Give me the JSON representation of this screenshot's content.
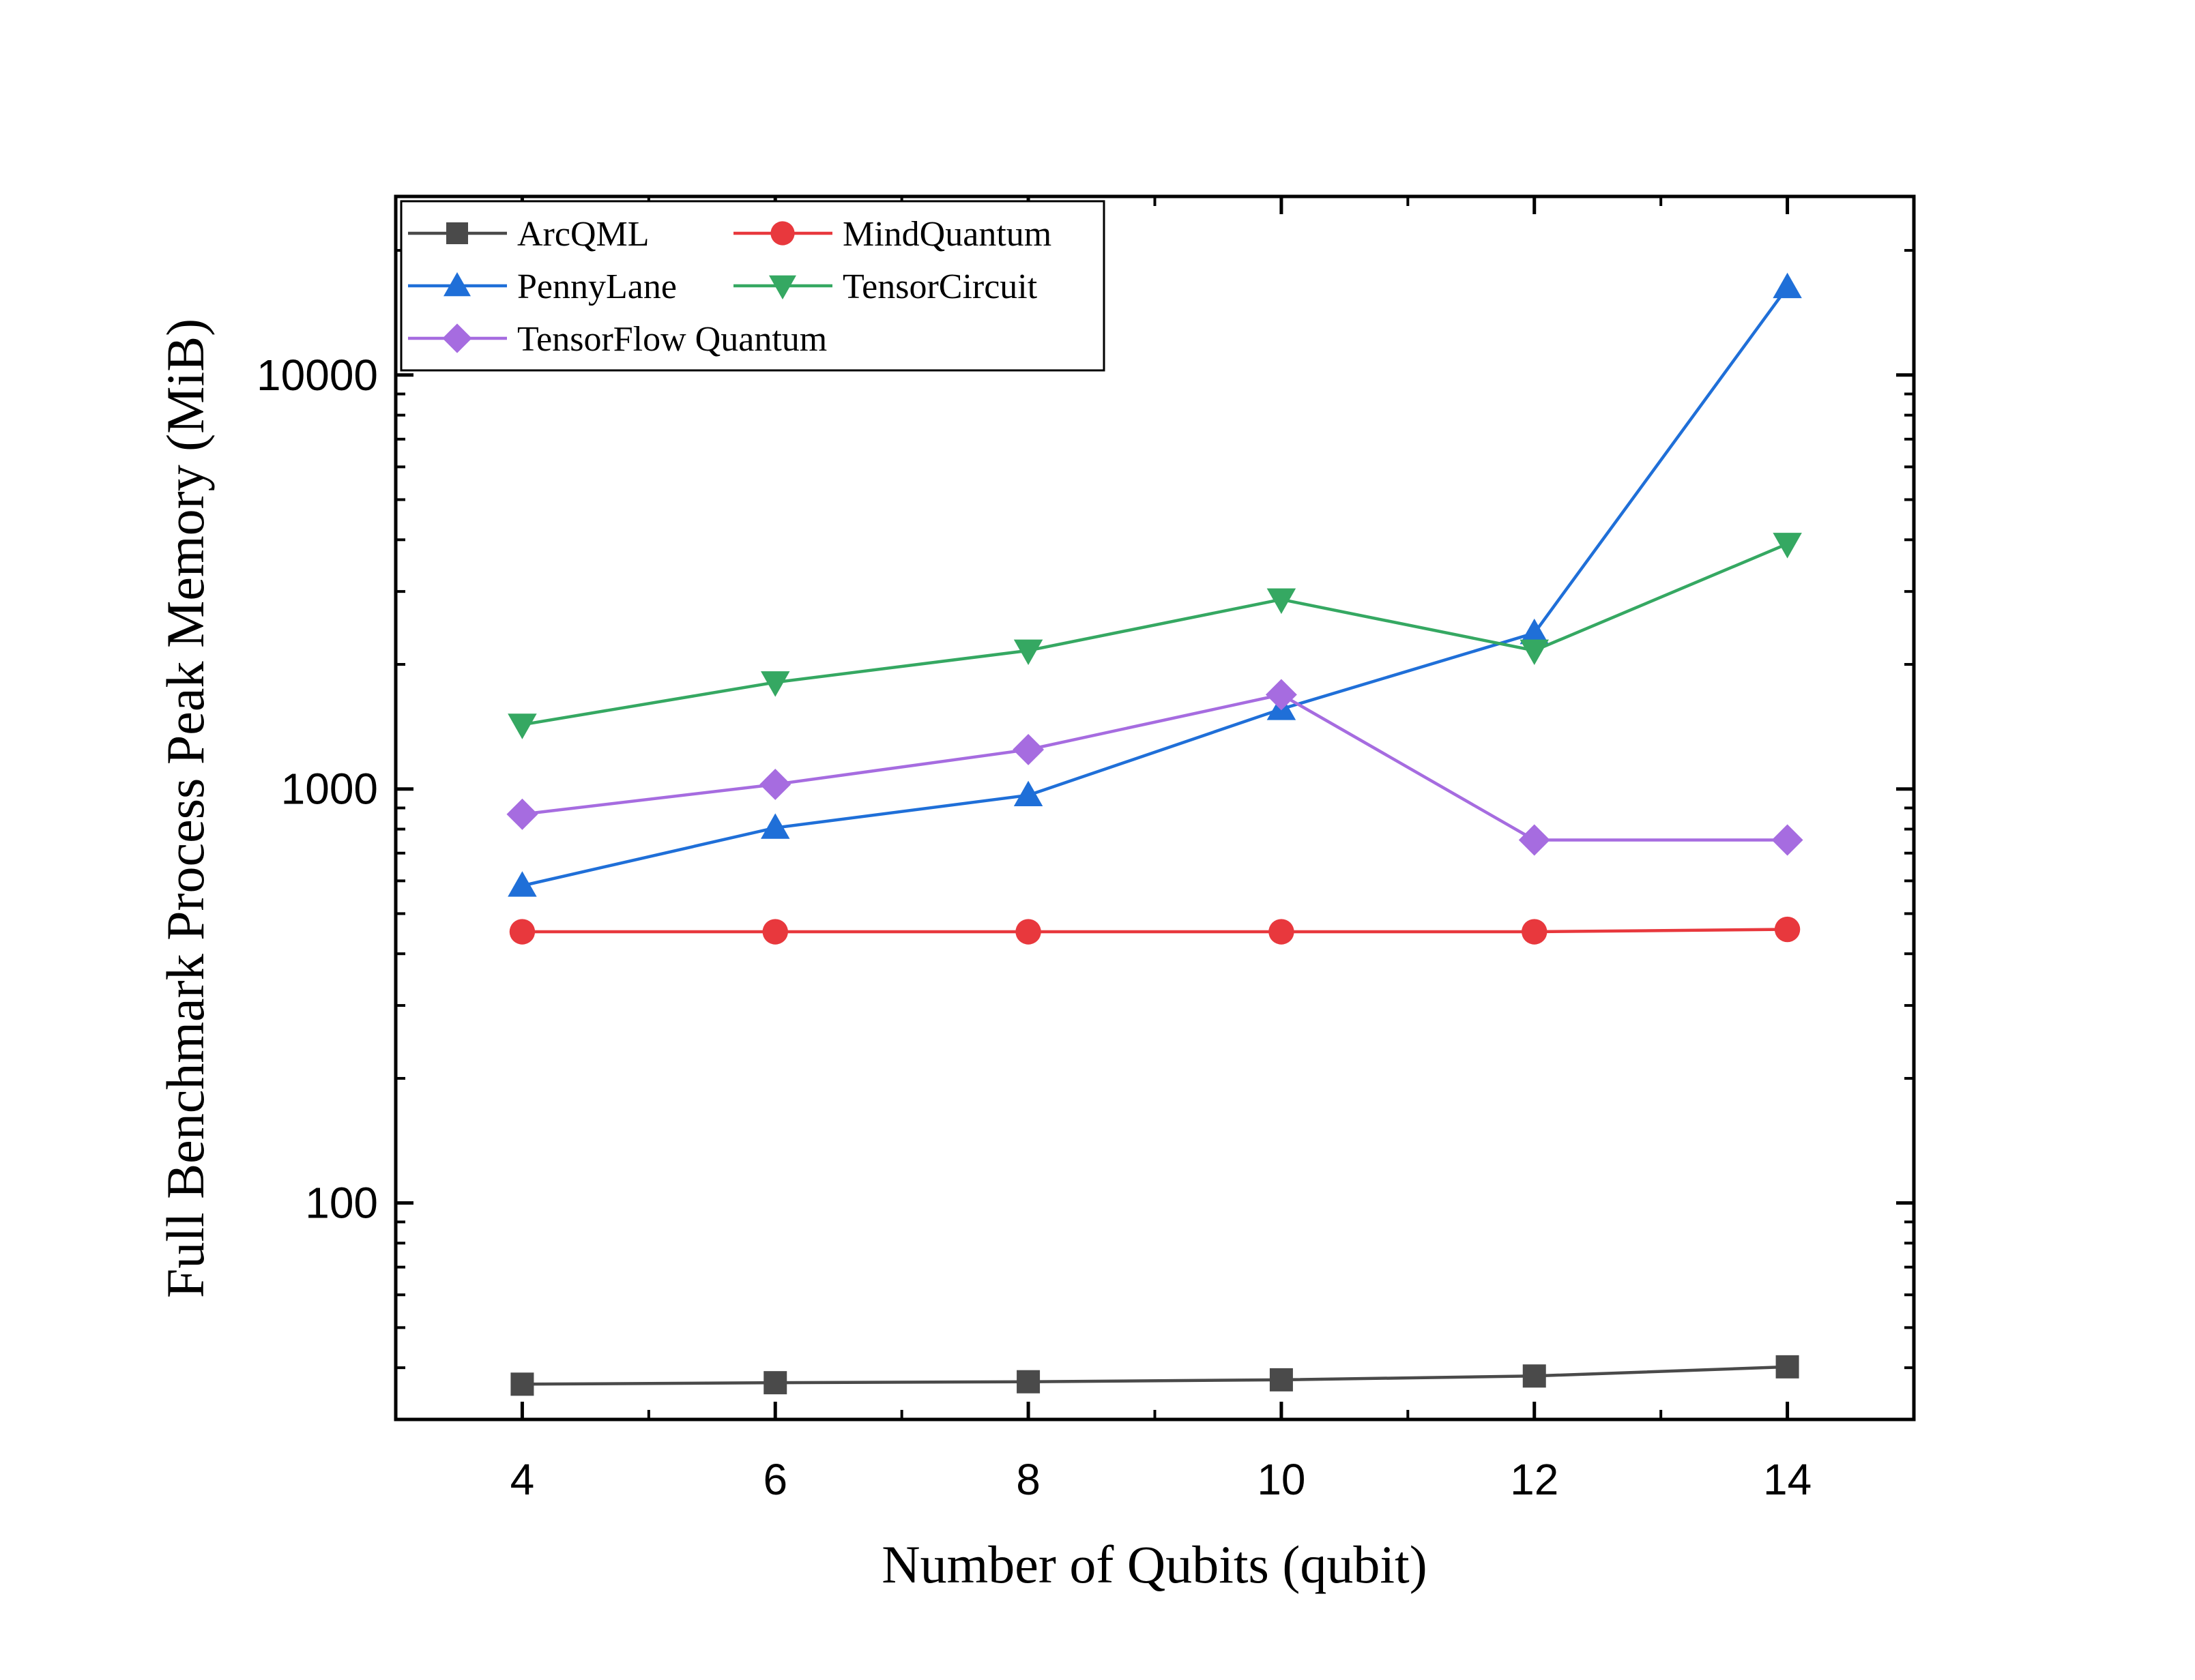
{
  "chart_data": {
    "type": "line",
    "xlabel": "Number of Qubits (qubit)",
    "ylabel": "Full Benchmark Process Peak Memory (MiB)",
    "x": [
      4,
      6,
      8,
      10,
      12,
      14
    ],
    "x_ticks": [
      4,
      6,
      8,
      10,
      12,
      14
    ],
    "x_tick_labels": [
      "4",
      "6",
      "8",
      "10",
      "12",
      "14"
    ],
    "xlim": [
      3,
      15
    ],
    "y_scale": "log",
    "ylim": [
      30,
      27000
    ],
    "y_ticks": [
      100,
      1000,
      10000
    ],
    "y_tick_labels": [
      "100",
      "1000",
      "10000"
    ],
    "grid": false,
    "legend_position": "top-left",
    "series": [
      {
        "name": "ArcQML",
        "marker": "square",
        "color": "#4a4a4a",
        "values": [
          36.5,
          36.8,
          37.0,
          37.4,
          38.2,
          40.2
        ]
      },
      {
        "name": "MindQuantum",
        "marker": "circle",
        "color": "#e8383d",
        "values": [
          452,
          452,
          452,
          452,
          452,
          458
        ]
      },
      {
        "name": "PennyLane",
        "marker": "triangle-up",
        "color": "#1f6fd8",
        "values": [
          584,
          806,
          966,
          1560,
          2380,
          16300
        ]
      },
      {
        "name": "TensorCircuit",
        "marker": "triangle-down",
        "color": "#35a862",
        "values": [
          1430,
          1810,
          2160,
          2870,
          2160,
          3910
        ]
      },
      {
        "name": "TensorFlow Quantum",
        "marker": "diamond",
        "color": "#a66ce0",
        "values": [
          869,
          1026,
          1245,
          1690,
          753,
          753
        ]
      }
    ]
  }
}
